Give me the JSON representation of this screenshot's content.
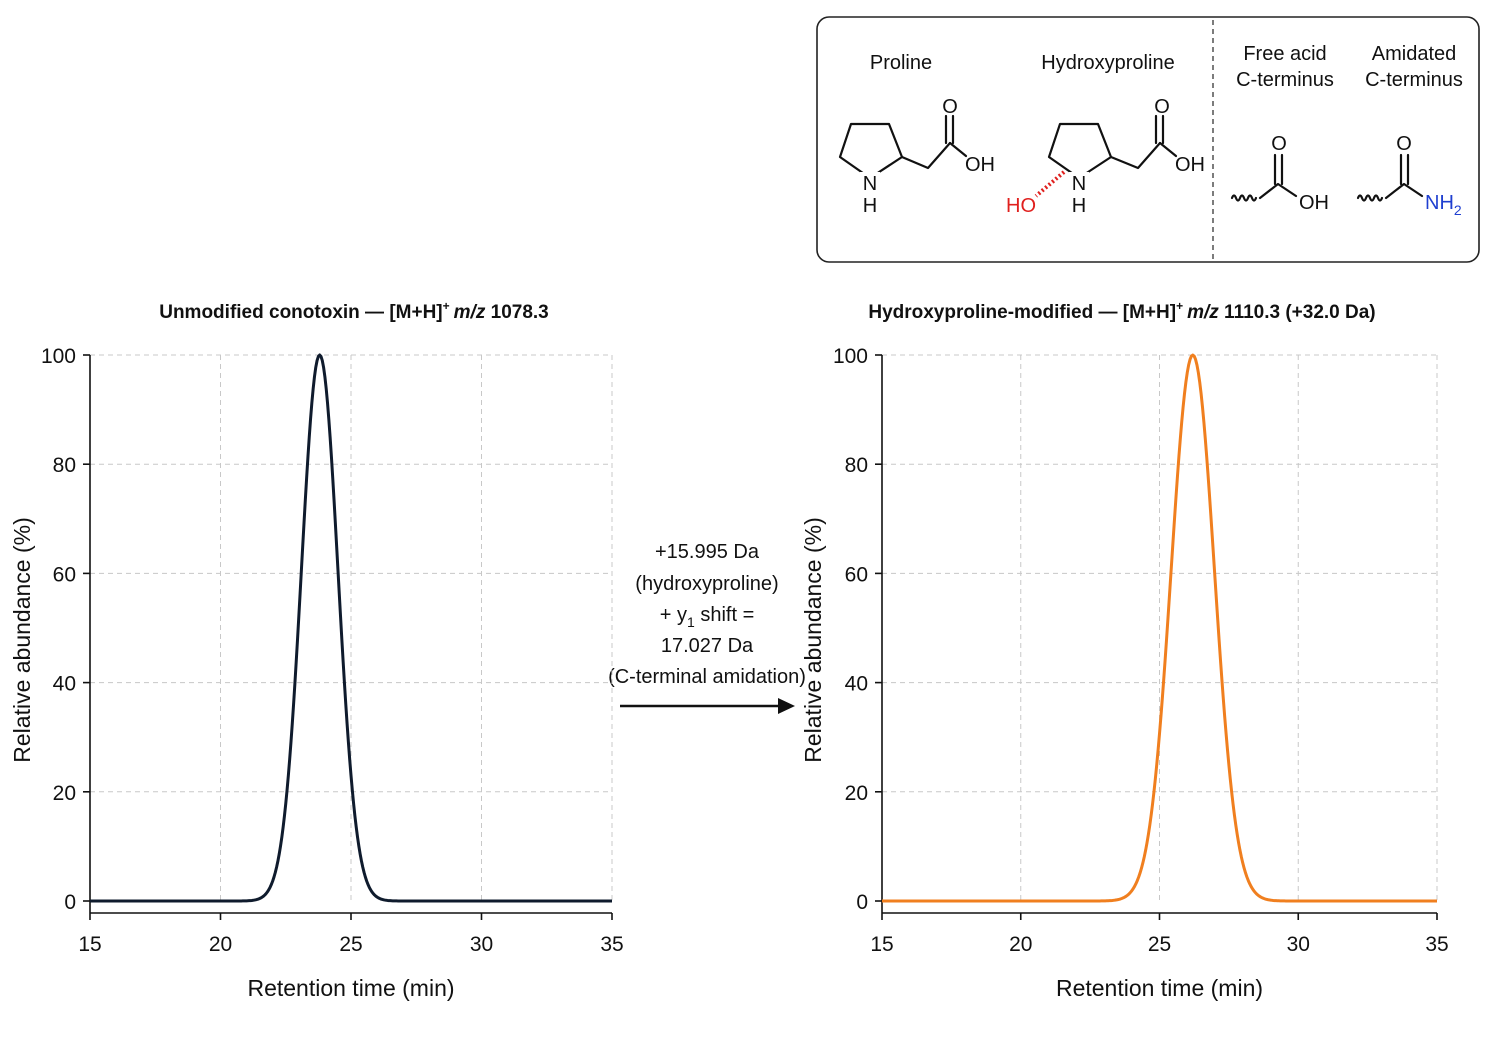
{
  "chart_data": [
    {
      "type": "line",
      "title": "Unmodified conotoxin — [M+H]⁺ m/z 1078.3",
      "title_parts": {
        "prefix": "Unmodified conotoxin — [M+H]",
        "sup": "+",
        "mz": "m/z",
        "suffix": " 1078.3"
      },
      "xlabel": "Retention time (min)",
      "ylabel": "Relative abundance (%)",
      "xlim": [
        15,
        35
      ],
      "ylim": [
        0,
        100
      ],
      "xticks": [
        15,
        20,
        25,
        30,
        35
      ],
      "yticks": [
        0,
        20,
        40,
        60,
        80,
        100
      ],
      "grid": true,
      "series": [
        {
          "color": "#0f1b2d",
          "peak_center": 23.8,
          "peak_sigma": 0.7,
          "peak_height": 100
        }
      ]
    },
    {
      "type": "line",
      "title": "Hydroxyproline-modified — [M+H]⁺ m/z 1110.3 (+32.0 Da)",
      "title_parts": {
        "prefix": "Hydroxyproline-modified — [M+H]",
        "sup": "+",
        "mz": "m/z",
        "suffix": " 1110.3 (+32.0 Da)"
      },
      "xlabel": "Retention time (min)",
      "ylabel": "Relative abundance (%)",
      "xlim": [
        15,
        35
      ],
      "ylim": [
        0,
        100
      ],
      "xticks": [
        15,
        20,
        25,
        30,
        35
      ],
      "yticks": [
        0,
        20,
        40,
        60,
        80,
        100
      ],
      "grid": true,
      "series": [
        {
          "color": "#f07f1f",
          "peak_center": 26.2,
          "peak_sigma": 0.78,
          "peak_height": 100
        }
      ]
    }
  ],
  "annotation": {
    "line1": "+15.995 Da",
    "line2": "(hydroxyproline)",
    "line3_prefix": "+ y",
    "line3_sub": "1",
    "line3_suffix": " shift =",
    "line4": "17.027 Da",
    "line5": "(C-terminal amidation)"
  },
  "legend_box": {
    "proline": {
      "label": "Proline",
      "o": "O",
      "oh": "OH",
      "n": "N",
      "h": "H"
    },
    "hydroxyproline": {
      "label": "Hydroxyproline",
      "o": "O",
      "oh": "OH",
      "n": "N",
      "h": "H",
      "ho": "HO",
      "ho_color": "#e0201e"
    },
    "free_acid": {
      "label_line1": "Free acid",
      "label_line2": "C-terminus",
      "o": "O",
      "oh": "OH"
    },
    "amidated": {
      "label_line1": "Amidated",
      "label_line2": "C-terminus",
      "o": "O",
      "nh": "NH",
      "nh_sub": "2",
      "nh_color": "#1f3fd0"
    }
  }
}
